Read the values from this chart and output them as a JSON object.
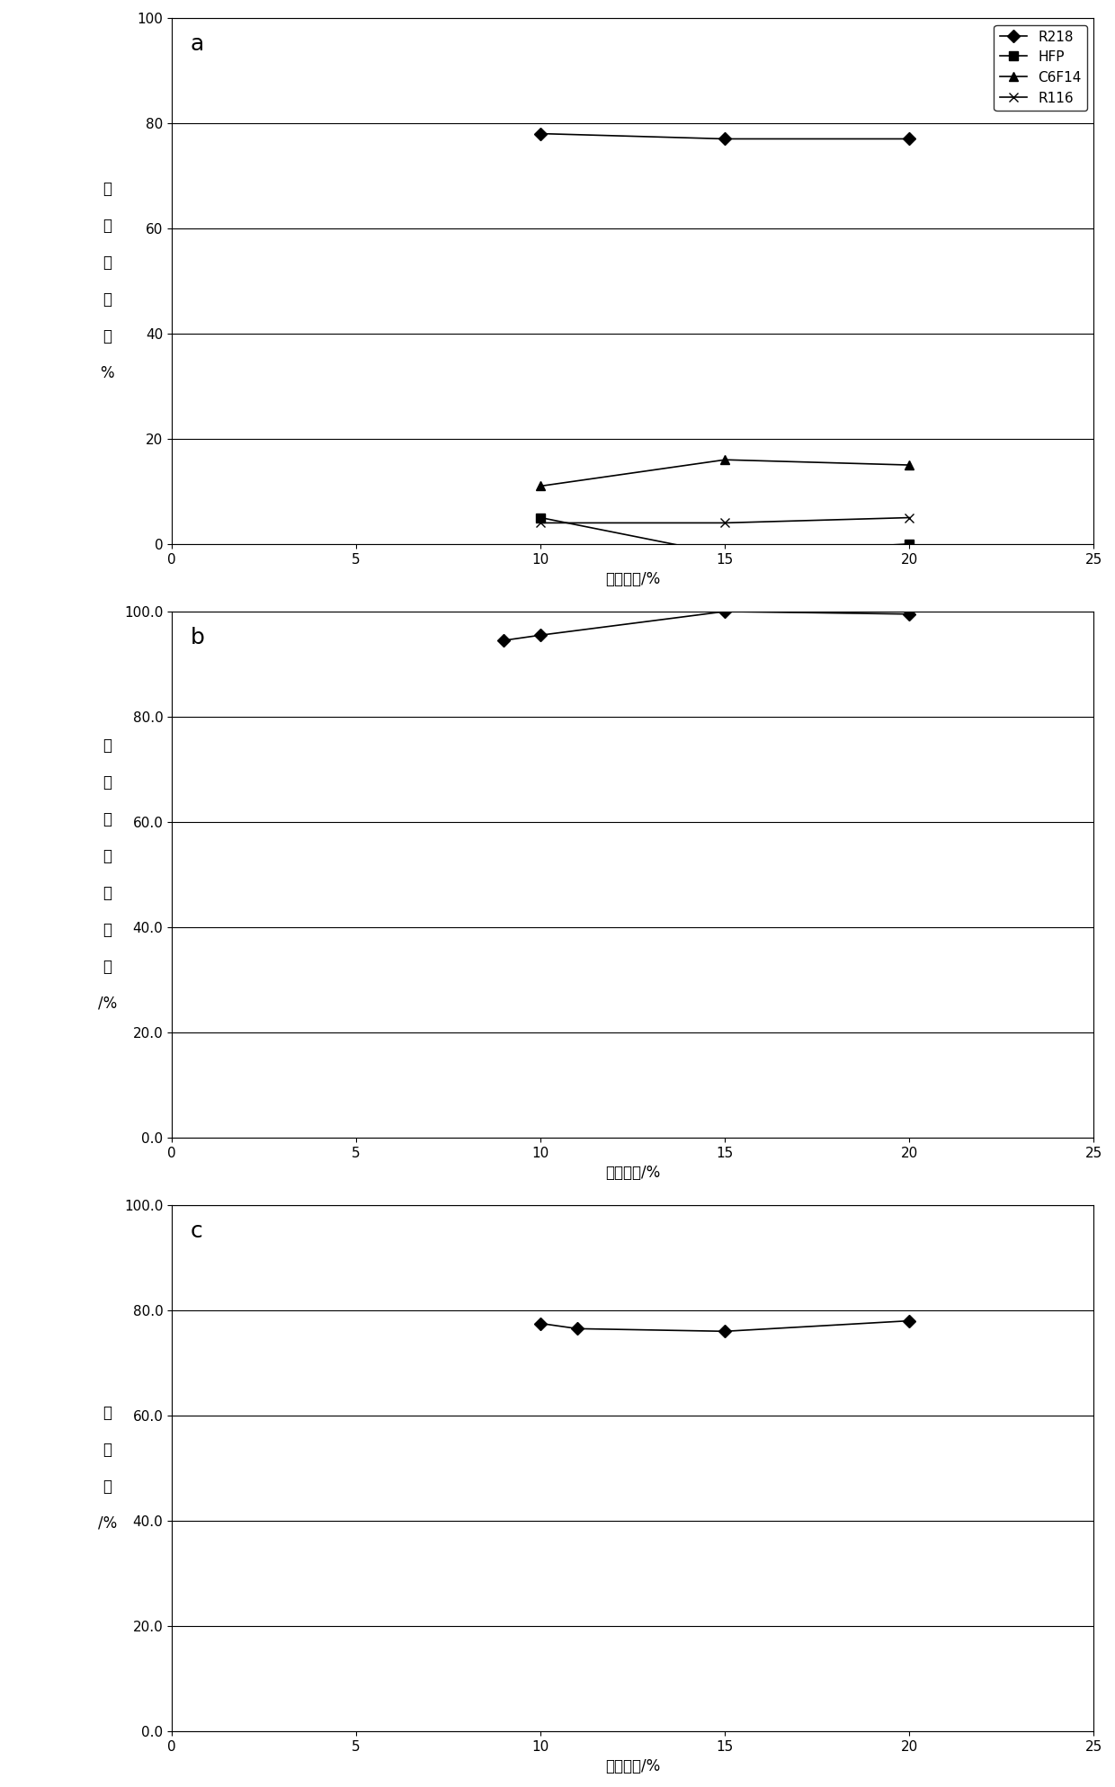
{
  "panel_a": {
    "label": "a",
    "x_label": "氯气浓度/%",
    "y_label_chars": [
      "产",
      "物",
      "转",
      "化",
      "率",
      "%"
    ],
    "xlim": [
      0,
      25
    ],
    "ylim": [
      0,
      100
    ],
    "xticks": [
      0,
      5,
      10,
      15,
      20,
      25
    ],
    "yticks": [
      0,
      20,
      40,
      60,
      80,
      100
    ],
    "ytick_labels": [
      "0",
      "20",
      "40",
      "60",
      "80",
      "100"
    ],
    "series": [
      {
        "name": "R218",
        "x": [
          10,
          15,
          20
        ],
        "y": [
          78,
          77,
          77
        ],
        "marker": "D",
        "linestyle": "-"
      },
      {
        "name": "HFP",
        "x": [
          10,
          15,
          20
        ],
        "y": [
          5,
          -2,
          0
        ],
        "marker": "s",
        "linestyle": "-"
      },
      {
        "name": "C6F14",
        "x": [
          10,
          15,
          20
        ],
        "y": [
          11,
          16,
          15
        ],
        "marker": "^",
        "linestyle": "-"
      },
      {
        "name": "R116",
        "x": [
          10,
          15,
          20
        ],
        "y": [
          4,
          4,
          5
        ],
        "marker": "x",
        "linestyle": "-"
      }
    ],
    "has_legend": true
  },
  "panel_b": {
    "label": "b",
    "x_label": "氯气浓度/%",
    "y_label_chars": [
      "氚",
      "化",
      "反",
      "应",
      "转",
      "化",
      "率",
      "/%"
    ],
    "xlim": [
      0,
      25
    ],
    "ylim": [
      0.0,
      100.0
    ],
    "xticks": [
      0,
      5,
      10,
      15,
      20,
      25
    ],
    "yticks": [
      0.0,
      20.0,
      40.0,
      60.0,
      80.0,
      100.0
    ],
    "ytick_labels": [
      "0.0",
      "20.0",
      "40.0",
      "60.0",
      "80.0",
      "100.0"
    ],
    "series": [
      {
        "name": "R218",
        "x": [
          9,
          10,
          15,
          20
        ],
        "y": [
          94.5,
          95.5,
          100.0,
          99.5
        ],
        "marker": "D",
        "linestyle": "-"
      }
    ],
    "has_legend": false
  },
  "panel_c": {
    "label": "c",
    "x_label": "氯气浓度/%",
    "y_label_chars": [
      "选",
      "择",
      "性",
      "/%"
    ],
    "xlim": [
      0,
      25
    ],
    "ylim": [
      0.0,
      100.0
    ],
    "xticks": [
      0,
      5,
      10,
      15,
      20,
      25
    ],
    "yticks": [
      0.0,
      20.0,
      40.0,
      60.0,
      80.0,
      100.0
    ],
    "ytick_labels": [
      "0.0",
      "20.0",
      "40.0",
      "60.0",
      "80.0",
      "100.0"
    ],
    "series": [
      {
        "name": "R218",
        "x": [
          10,
          11,
          15,
          20
        ],
        "y": [
          77.5,
          76.5,
          76.0,
          78.0
        ],
        "marker": "D",
        "linestyle": "-"
      }
    ],
    "has_legend": false
  },
  "bg_color": "#ffffff",
  "font_color": "#000000",
  "tick_font_size": 11,
  "label_font_size": 12,
  "ylabel_font_size": 12,
  "panel_label_fontsize": 18,
  "line_color": "#000000",
  "marker_size": 7,
  "linewidth": 1.2,
  "grid_color": "#000000",
  "grid_linewidth": 0.8
}
